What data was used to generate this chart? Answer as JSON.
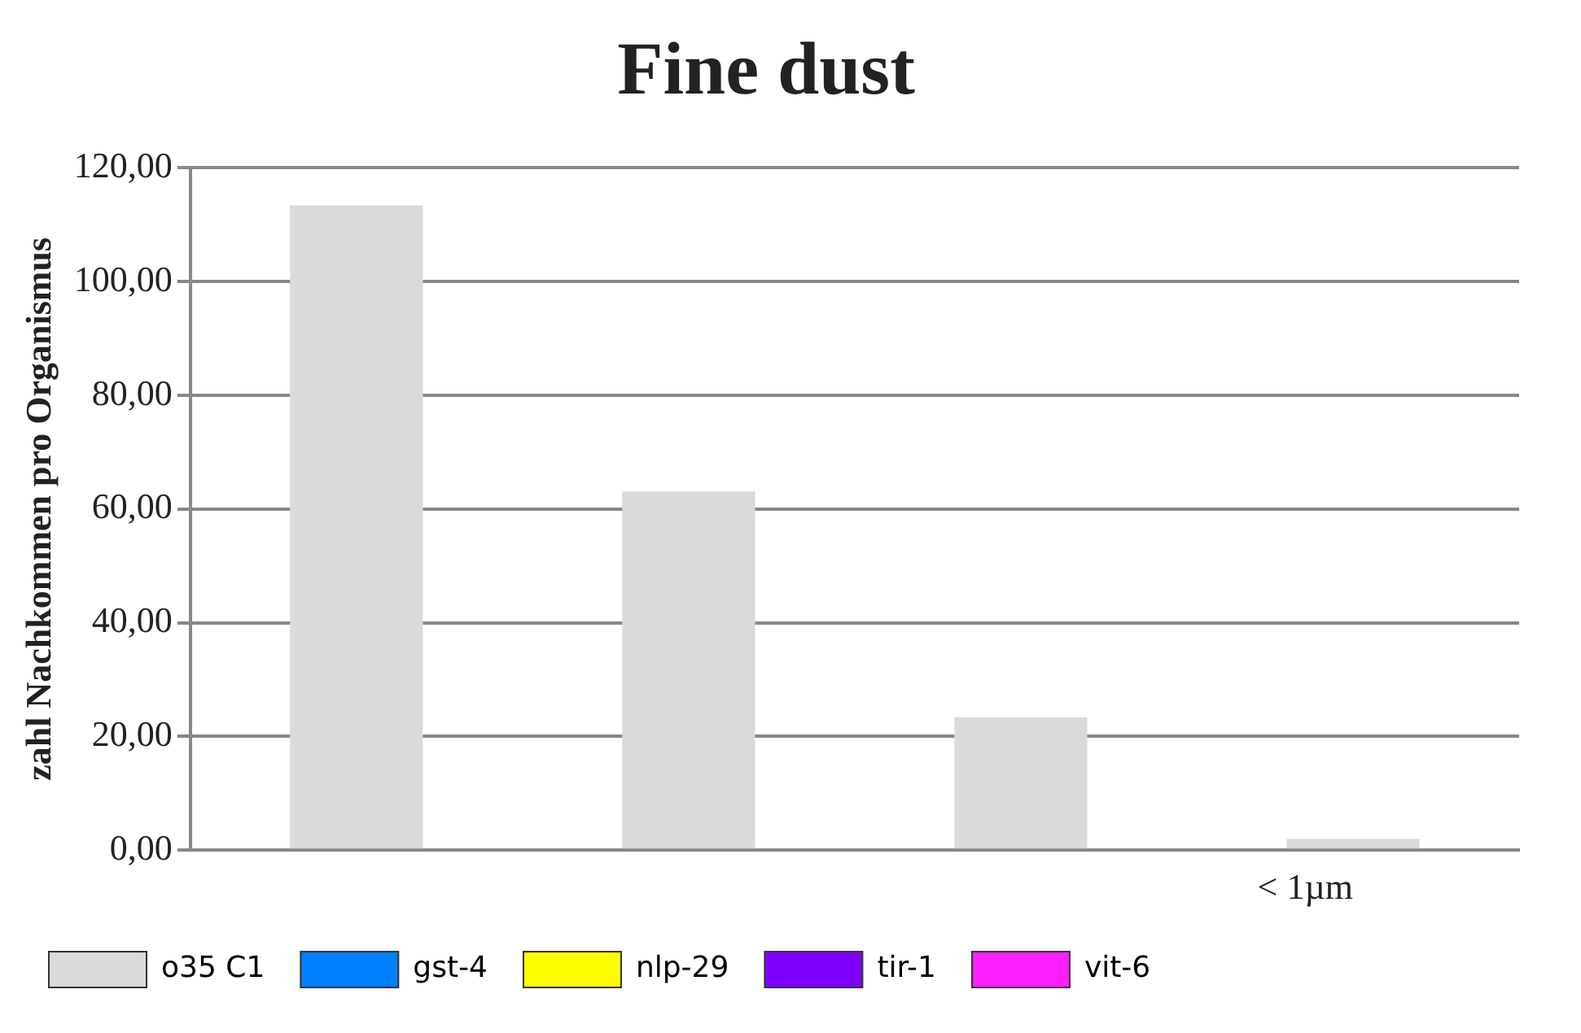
{
  "chart_data": {
    "type": "bar",
    "title": "Fine dust",
    "ylabel": "zahl Nachkommen pro Organismus",
    "categories": [
      null,
      null,
      null,
      "< 1µm"
    ],
    "series": [
      {
        "name": "o35 C1",
        "color": "#dadada",
        "values": [
          113.4,
          63.1,
          23.4,
          2
        ]
      },
      {
        "name": "gst-4",
        "color": "#0080ff",
        "values": [
          null,
          null,
          null,
          null
        ]
      },
      {
        "name": "nlp-29",
        "color": "#ffff00",
        "values": [
          null,
          null,
          null,
          null
        ]
      },
      {
        "name": "tir-1",
        "color": "#8000ff",
        "values": [
          null,
          null,
          null,
          null
        ]
      },
      {
        "name": "vit-6",
        "color": "#ff20ff",
        "values": [
          null,
          null,
          null,
          null
        ]
      }
    ],
    "ylim": [
      0,
      120
    ],
    "yticks": [
      {
        "value": 0,
        "label": "0,00"
      },
      {
        "value": 20,
        "label": "20,00"
      },
      {
        "value": 40,
        "label": "40,00"
      },
      {
        "value": 60,
        "label": "60,00"
      },
      {
        "value": 80,
        "label": "80,00"
      },
      {
        "value": 100,
        "label": "100,00"
      },
      {
        "value": 120,
        "label": "120,00"
      }
    ],
    "grid": "y",
    "legend": "bottom"
  }
}
